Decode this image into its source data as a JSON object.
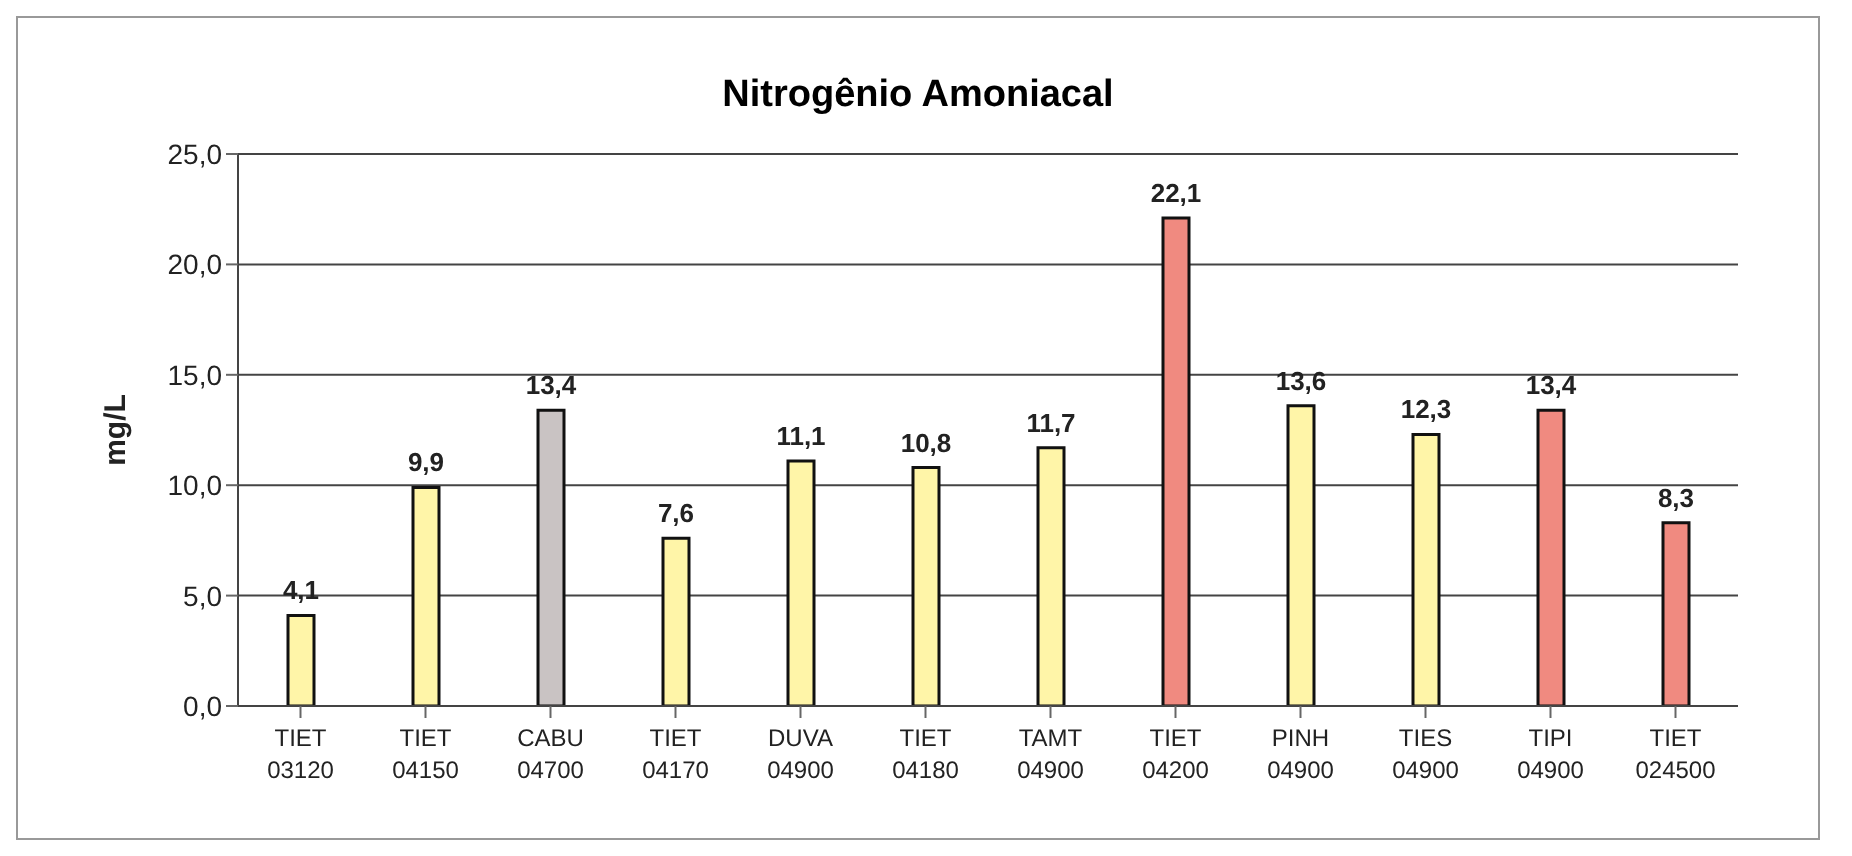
{
  "chart_data": {
    "type": "bar",
    "title": "Nitrogênio Amoniacal",
    "ylabel": "mg/L",
    "categories": [
      "TIET 03120",
      "TIET 04150",
      "CABU 04700",
      "TIET 04170",
      "DUVA 04900",
      "TIET 04180",
      "TAMT 04900",
      "TIET 04200",
      "PINH 04900",
      "TIES 04900",
      "TIPI 04900",
      "TIET 024500"
    ],
    "values": [
      4.1,
      9.9,
      13.4,
      7.6,
      11.1,
      10.8,
      11.7,
      22.1,
      13.6,
      12.3,
      13.4,
      8.3
    ],
    "value_labels": [
      "4,1",
      "9,9",
      "13,4",
      "7,6",
      "11,1",
      "10,8",
      "11,7",
      "22,1",
      "13,6",
      "12,3",
      "13,4",
      "8,3"
    ],
    "colors": [
      "#fff5a8",
      "#fff5a8",
      "#c9c3c3",
      "#fff5a8",
      "#fff5a8",
      "#fff5a8",
      "#fff5a8",
      "#f08a80",
      "#fff5a8",
      "#fff5a8",
      "#f08a80",
      "#f08a80"
    ],
    "ylim": [
      0,
      25
    ],
    "yticks": [
      {
        "value": 0,
        "label": "0,0"
      },
      {
        "value": 5,
        "label": "5,0"
      },
      {
        "value": 10,
        "label": "10,0"
      },
      {
        "value": 15,
        "label": "15,0"
      },
      {
        "value": 20,
        "label": "20,0"
      },
      {
        "value": 25,
        "label": "25,0"
      }
    ],
    "grid": "y",
    "legend": false
  }
}
